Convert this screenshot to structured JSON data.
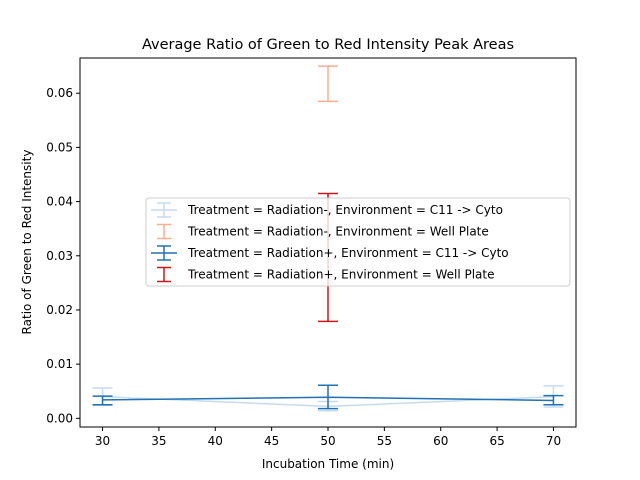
{
  "chart_data": {
    "type": "line",
    "title": "Average Ratio of Green to Red Intensity Peak Areas",
    "xlabel": "Incubation Time (min)",
    "ylabel": "Ratio of Green to Red Intensity",
    "xlim": [
      28.0,
      72.0
    ],
    "ylim": [
      -0.0016,
      0.0665
    ],
    "xticks": [
      30,
      35,
      40,
      45,
      50,
      55,
      60,
      65,
      70
    ],
    "xtick_labels": [
      "30",
      "35",
      "40",
      "45",
      "50",
      "55",
      "60",
      "65",
      "70"
    ],
    "yticks": [
      0.0,
      0.01,
      0.02,
      0.03,
      0.04,
      0.05,
      0.06
    ],
    "ytick_labels": [
      "0.00",
      "0.01",
      "0.02",
      "0.03",
      "0.04",
      "0.05",
      "0.06"
    ],
    "grid": false,
    "legend_position": "center-right",
    "series": [
      {
        "name": "Treatment = Radiation-, Environment = C11 -> Cyto",
        "color": "#c6dbef",
        "x": [
          30,
          50,
          70
        ],
        "y": [
          0.004,
          0.0022,
          0.004
        ],
        "err_low": [
          0.0024,
          0.0014,
          0.0021
        ],
        "err_high": [
          0.0056,
          0.0031,
          0.006
        ],
        "line": true
      },
      {
        "name": "Treatment = Radiation-, Environment = Well Plate",
        "color": "#fcae91",
        "x": [
          50
        ],
        "y": [
          0.0617
        ],
        "err_low": [
          0.0585
        ],
        "err_high": [
          0.065
        ],
        "line": false
      },
      {
        "name": "Treatment = Radiation+, Environment = C11 -> Cyto",
        "color": "#2171b5",
        "x": [
          30,
          50,
          70
        ],
        "y": [
          0.0034,
          0.0039,
          0.0033
        ],
        "err_low": [
          0.0025,
          0.0018,
          0.0025
        ],
        "err_high": [
          0.0041,
          0.0061,
          0.0042
        ],
        "line": true
      },
      {
        "name": "Treatment = Radiation+, Environment = Well Plate",
        "color": "#cb181d",
        "x": [
          50
        ],
        "y": [
          0.0297
        ],
        "err_low": [
          0.0179
        ],
        "err_high": [
          0.0415
        ],
        "line": false
      }
    ]
  }
}
